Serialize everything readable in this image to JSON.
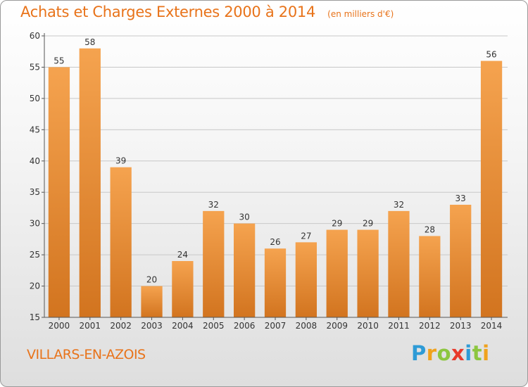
{
  "header": {
    "title": "Achats et Charges Externes 2000 à 2014",
    "subtitle": "(en milliers d'€)"
  },
  "footer": {
    "commune": "VILLARS-EN-AZOIS",
    "logo_letters": [
      {
        "char": "P",
        "color": "#2e9bd6"
      },
      {
        "char": "r",
        "color": "#f0a21c"
      },
      {
        "char": "o",
        "color": "#8cc63f"
      },
      {
        "char": "x",
        "color": "#e8392b"
      },
      {
        "char": "i",
        "color": "#2e9bd6"
      },
      {
        "char": "t",
        "color": "#8cc63f"
      },
      {
        "char": "i",
        "color": "#f0a21c"
      }
    ]
  },
  "colors": {
    "accent": "#e8731a",
    "bar_light": "#f5a34f",
    "bar_dark": "#d2741f"
  },
  "chart_data": {
    "type": "bar",
    "title": "Achats et Charges Externes 2000 à 2014",
    "subtitle": "(en milliers d'€)",
    "xlabel": "",
    "ylabel": "",
    "categories": [
      "2000",
      "2001",
      "2002",
      "2003",
      "2004",
      "2005",
      "2006",
      "2007",
      "2008",
      "2009",
      "2010",
      "2011",
      "2012",
      "2013",
      "2014"
    ],
    "values": [
      55,
      58,
      39,
      20,
      24,
      32,
      30,
      26,
      27,
      29,
      29,
      32,
      28,
      33,
      56
    ],
    "ylim": [
      15,
      60
    ],
    "yticks": [
      15,
      20,
      25,
      30,
      35,
      40,
      45,
      50,
      55,
      60
    ],
    "grid": true,
    "legend": "none"
  }
}
